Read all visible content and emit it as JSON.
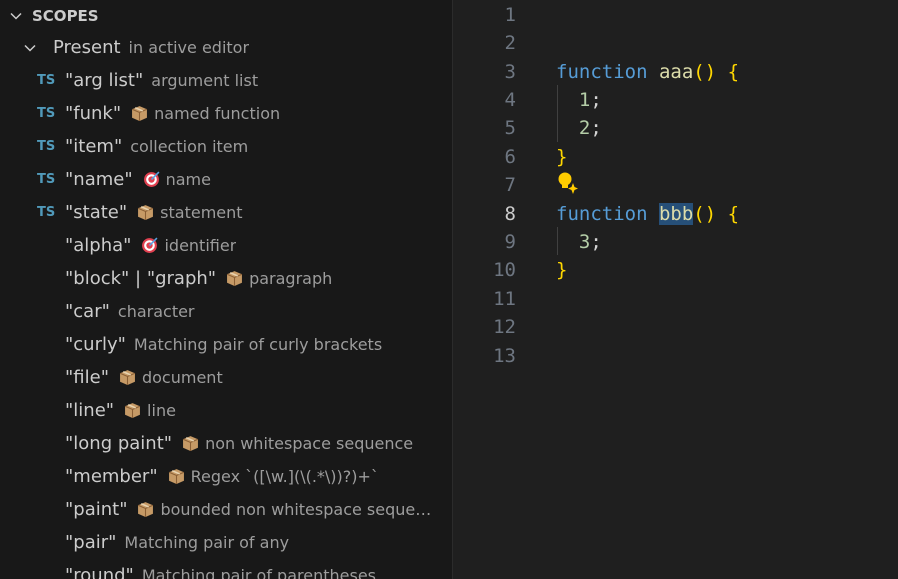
{
  "sidebar": {
    "title": "SCOPES",
    "group": {
      "label": "Present",
      "description": "in active editor"
    },
    "items": [
      {
        "badge": "TS",
        "label": "\"arg list\"",
        "description": "argument list"
      },
      {
        "badge": "TS",
        "label": "\"funk\"",
        "icon": "package",
        "description": "named function"
      },
      {
        "badge": "TS",
        "label": "\"item\"",
        "description": "collection item"
      },
      {
        "badge": "TS",
        "label": "\"name\"",
        "icon": "target",
        "description": "name"
      },
      {
        "badge": "TS",
        "label": "\"state\"",
        "icon": "package",
        "description": "statement"
      },
      {
        "label": "\"alpha\"",
        "icon": "target",
        "description": "identifier"
      },
      {
        "label": "\"block\" | \"graph\"",
        "icon": "package",
        "description": "paragraph"
      },
      {
        "label": "\"car\"",
        "description": "character"
      },
      {
        "label": "\"curly\"",
        "description": "Matching pair of curly brackets"
      },
      {
        "label": "\"file\"",
        "icon": "package",
        "description": "document"
      },
      {
        "label": "\"line\"",
        "icon": "package",
        "description": "line"
      },
      {
        "label": "\"long paint\"",
        "icon": "package",
        "description": "non whitespace sequence"
      },
      {
        "label": "\"member\"",
        "icon": "package",
        "description": "Regex `([\\w.](\\(.*\\))?)+`"
      },
      {
        "label": "\"paint\"",
        "icon": "package",
        "description": "bounded non whitespace sequen..."
      },
      {
        "label": "\"pair\"",
        "description": "Matching pair of any"
      },
      {
        "label": "\"round\"",
        "description": "Matching pair of parentheses"
      }
    ]
  },
  "editor": {
    "lines": [
      {
        "number": 1,
        "tokens": []
      },
      {
        "number": 2,
        "tokens": []
      },
      {
        "number": 3,
        "tokens": [
          {
            "text": "function",
            "color": "#569cd6"
          },
          {
            "text": " "
          },
          {
            "text": "aaa",
            "color": "#dcdcaa"
          },
          {
            "text": "()",
            "color": "#ffd700"
          },
          {
            "text": " "
          },
          {
            "text": "{",
            "color": "#ffd700"
          }
        ]
      },
      {
        "number": 4,
        "tokens": [
          {
            "text": "  "
          },
          {
            "text": "1",
            "color": "#b5cea8"
          },
          {
            "text": ";",
            "color": "#d4d4d4"
          }
        ]
      },
      {
        "number": 5,
        "tokens": [
          {
            "text": "  "
          },
          {
            "text": "2",
            "color": "#b5cea8"
          },
          {
            "text": ";",
            "color": "#d4d4d4"
          }
        ]
      },
      {
        "number": 6,
        "tokens": [
          {
            "text": "}",
            "color": "#ffd700"
          }
        ]
      },
      {
        "number": 7,
        "tokens": []
      },
      {
        "number": 8,
        "active": true,
        "tokens": [
          {
            "text": "function",
            "color": "#569cd6"
          },
          {
            "text": " "
          },
          {
            "text": "bbb",
            "color": "#dcdcaa",
            "highlight": true
          },
          {
            "text": "()",
            "color": "#ffd700"
          },
          {
            "text": " "
          },
          {
            "text": "{",
            "color": "#ffd700"
          }
        ]
      },
      {
        "number": 9,
        "tokens": [
          {
            "text": "  "
          },
          {
            "text": "3",
            "color": "#b5cea8"
          },
          {
            "text": ";",
            "color": "#d4d4d4"
          }
        ]
      },
      {
        "number": 10,
        "tokens": [
          {
            "text": "}",
            "color": "#ffd700"
          }
        ]
      },
      {
        "number": 11,
        "tokens": []
      },
      {
        "number": 12,
        "tokens": []
      },
      {
        "number": 13,
        "tokens": []
      }
    ]
  }
}
